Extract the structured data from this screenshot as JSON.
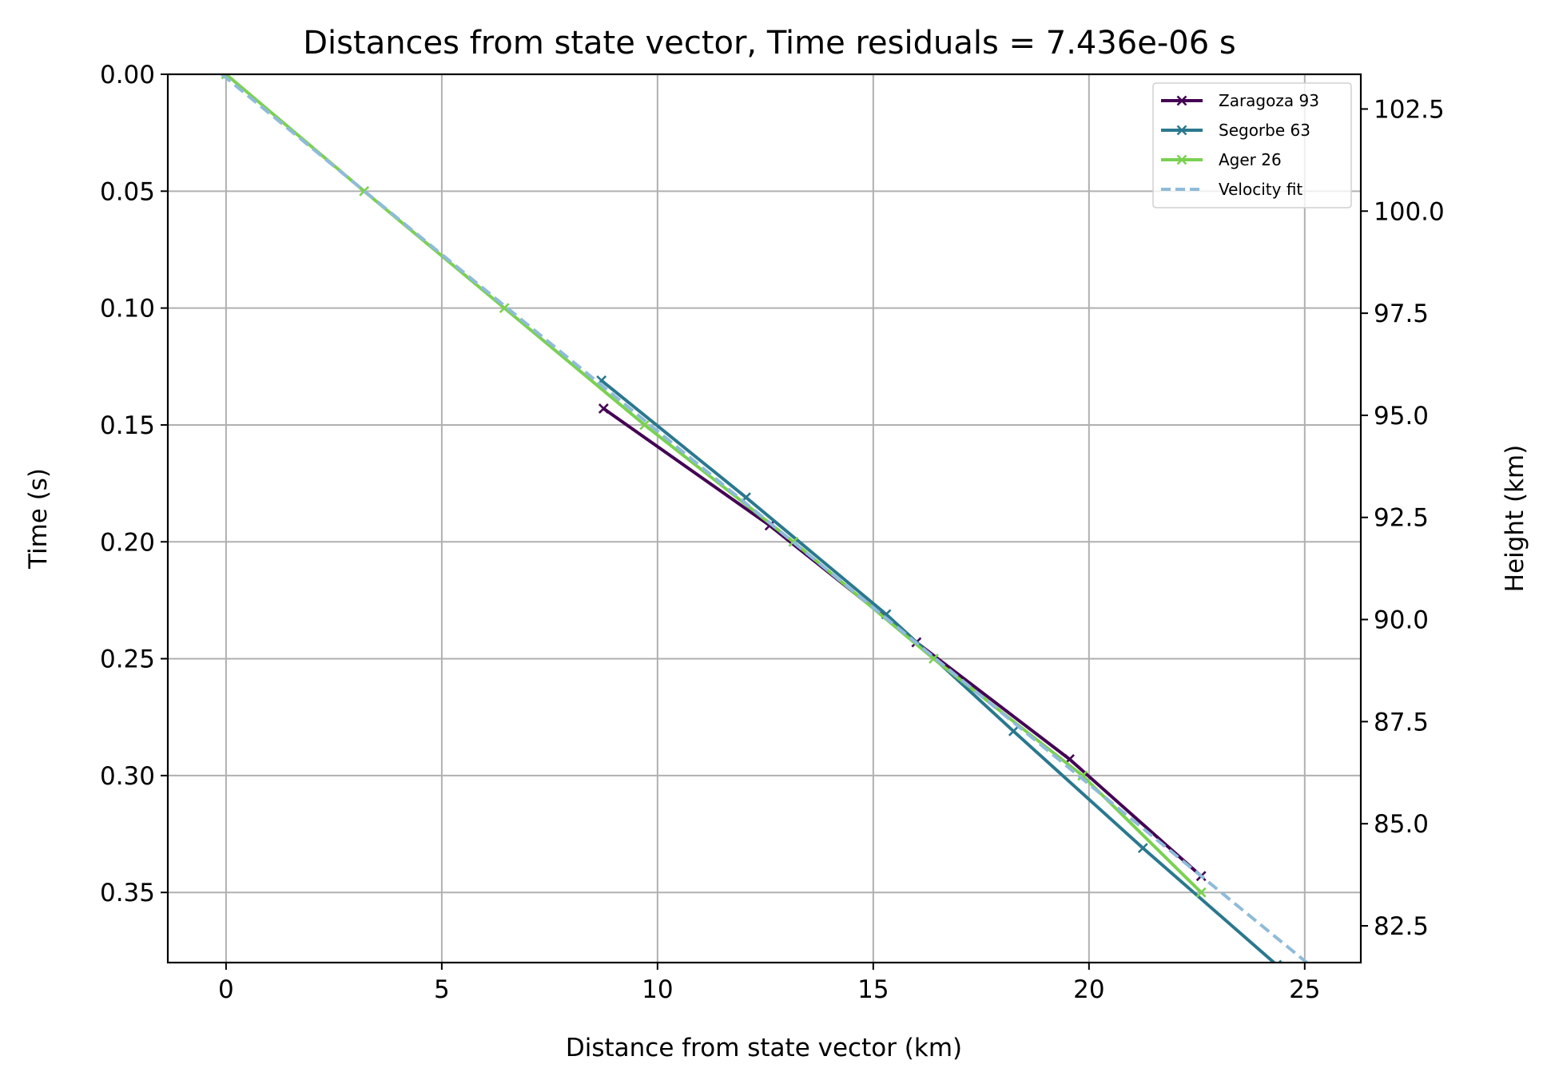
{
  "chart_data": {
    "type": "line",
    "title": "Distances from state vector, Time residuals = 7.436e-06 s",
    "xlabel": "Distance from state vector (km)",
    "ylabel": "Time (s)",
    "y2label": "Height (km)",
    "xlim": [
      -1.35,
      26.3
    ],
    "ylim": [
      0.38,
      0.0
    ],
    "y2lim": [
      81.6,
      103.35
    ],
    "y_inverted": true,
    "xticks": [
      0,
      5,
      10,
      15,
      20,
      25
    ],
    "xtick_labels": [
      "0",
      "5",
      "10",
      "15",
      "20",
      "25"
    ],
    "yticks": [
      0.0,
      0.05,
      0.1,
      0.15,
      0.2,
      0.25,
      0.3,
      0.35
    ],
    "ytick_labels": [
      "0.00",
      "0.05",
      "0.10",
      "0.15",
      "0.20",
      "0.25",
      "0.30",
      "0.35"
    ],
    "y2ticks": [
      82.5,
      85.0,
      87.5,
      90.0,
      92.5,
      95.0,
      97.5,
      100.0,
      102.5
    ],
    "y2tick_labels": [
      "82.5",
      "85.0",
      "87.5",
      "90.0",
      "92.5",
      "95.0",
      "97.5",
      "100.0",
      "102.5"
    ],
    "grid": true,
    "legend_position": "top-right",
    "series": [
      {
        "name": "Zaragoza 93",
        "color": "#440154",
        "marker": "x",
        "x": [
          8.75,
          12.6,
          16.0,
          19.55,
          22.6
        ],
        "y": [
          0.143,
          0.193,
          0.243,
          0.293,
          0.343
        ]
      },
      {
        "name": "Segorbe 63",
        "color": "#2a788e",
        "marker": "x",
        "x": [
          8.7,
          12.05,
          15.3,
          18.25,
          21.25,
          24.35
        ],
        "y": [
          0.131,
          0.181,
          0.231,
          0.281,
          0.331,
          0.381
        ]
      },
      {
        "name": "Ager 26",
        "color": "#7ad151",
        "marker": "x",
        "x": [
          0.0,
          3.2,
          6.45,
          9.7,
          13.15,
          16.4,
          19.85,
          22.6
        ],
        "y": [
          0.0,
          0.05,
          0.1,
          0.15,
          0.2,
          0.25,
          0.3,
          0.35
        ]
      },
      {
        "name": "Velocity fit",
        "color": "#8fbbd9",
        "style": "dashed",
        "x": [
          -0.1,
          25.05
        ],
        "y": [
          0.0,
          0.38
        ]
      }
    ]
  }
}
